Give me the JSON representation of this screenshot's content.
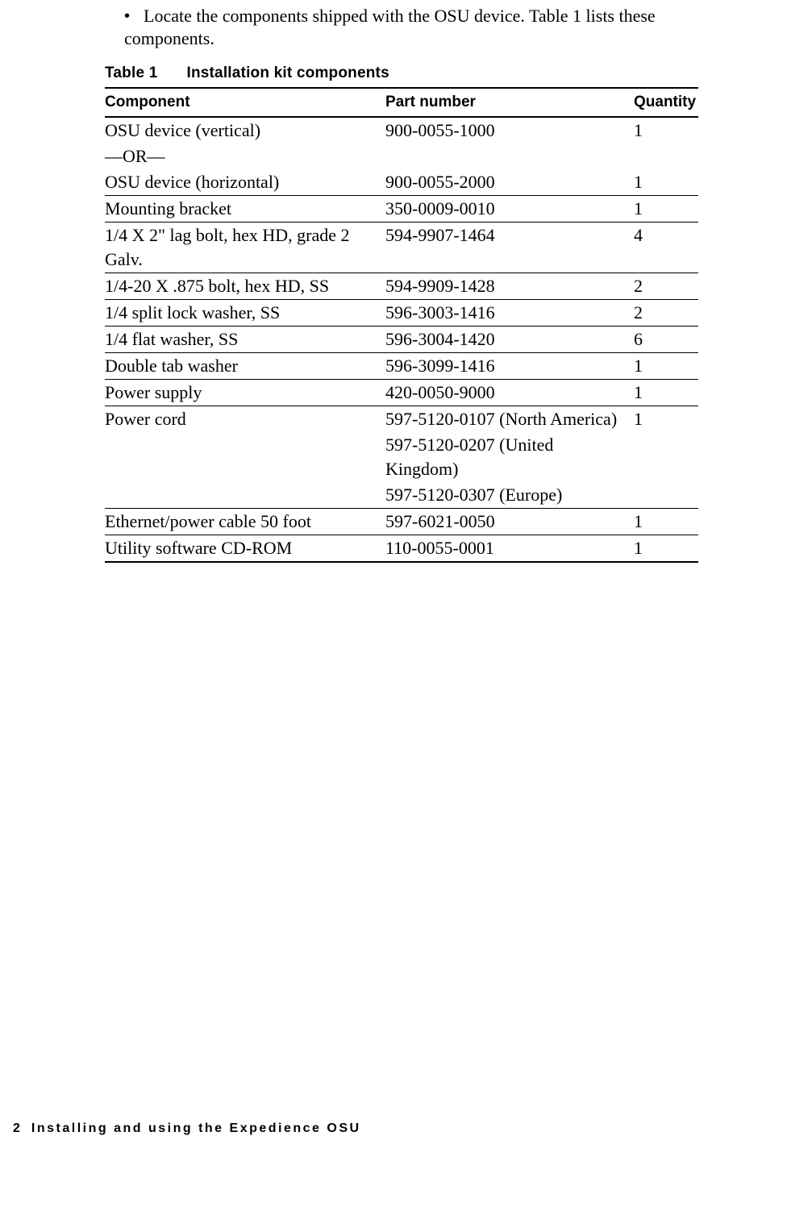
{
  "intro_text": "Locate the components shipped with the OSU device. Table 1 lists these components.",
  "table_caption_label": "Table 1",
  "table_caption_title": "Installation kit components",
  "columns": {
    "c0": "Component",
    "c1": "Part number",
    "c2": "Quantity"
  },
  "rows": {
    "r0": {
      "component": "OSU device (vertical)",
      "part": "900-0055-1000",
      "qty": "1"
    },
    "r0b": {
      "component": "—OR—",
      "part": "",
      "qty": ""
    },
    "r0c": {
      "component": "OSU device (horizontal)",
      "part": "900-0055-2000",
      "qty": "1"
    },
    "r1": {
      "component": "Mounting bracket",
      "part": "350-0009-0010",
      "qty": "1"
    },
    "r2": {
      "component": "1/4 X 2\" lag bolt, hex HD, grade 2 Galv.",
      "part": "594-9907-1464",
      "qty": "4"
    },
    "r3": {
      "component": "1/4-20 X .875 bolt, hex HD, SS",
      "part": "594-9909-1428",
      "qty": "2"
    },
    "r4": {
      "component": "1/4 split lock washer, SS",
      "part": "596-3003-1416",
      "qty": "2"
    },
    "r5": {
      "component": "1/4 flat washer, SS",
      "part": "596-3004-1420",
      "qty": "6"
    },
    "r6": {
      "component": "Double tab washer",
      "part": "596-3099-1416",
      "qty": "1"
    },
    "r7": {
      "component": "Power supply",
      "part": "420-0050-9000",
      "qty": "1"
    },
    "r8": {
      "component": "Power cord",
      "part": "597-5120-0107 (North America)",
      "qty": "1"
    },
    "r8b": {
      "component": "",
      "part": "597-5120-0207 (United Kingdom)",
      "qty": ""
    },
    "r8c": {
      "component": "",
      "part": "597-5120-0307 (Europe)",
      "qty": ""
    },
    "r9": {
      "component": "Ethernet/power cable 50 foot",
      "part": "597-6021-0050",
      "qty": "1"
    },
    "r10": {
      "component": "Utility software CD-ROM",
      "part": "110-0055-0001",
      "qty": "1"
    }
  },
  "footer": {
    "page_number": "2",
    "title": "Installing and using the Expedience OSU"
  }
}
